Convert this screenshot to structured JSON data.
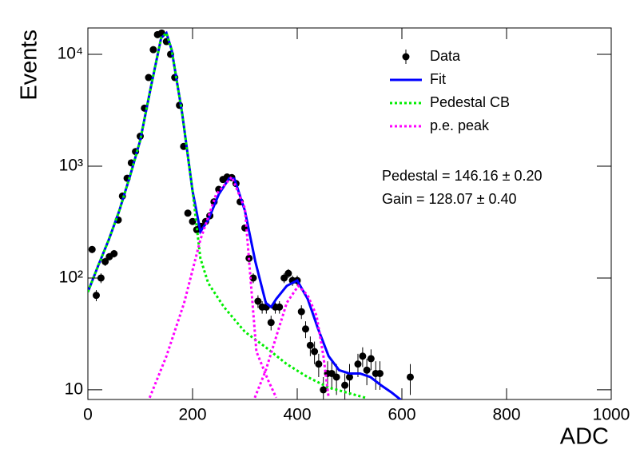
{
  "chart_data": {
    "type": "scatter",
    "x_label": "ADC",
    "y_label": "Events",
    "xlim": [
      0,
      1000
    ],
    "ylim": [
      8.2,
      17200
    ],
    "log_y": true,
    "xticks": [
      0,
      200,
      400,
      600,
      800,
      1000
    ],
    "yticks": [
      10,
      {
        "value": 100,
        "label": "10²"
      },
      {
        "value": 1000,
        "label": "10³"
      },
      {
        "value": 10000,
        "label": "10⁴"
      }
    ],
    "annotations": [
      "Pedestal = 146.16 ± 0.20",
      "Gain = 128.07 ± 0.40"
    ],
    "legend": "top-right",
    "series": [
      {
        "name": "Data",
        "type": "points",
        "color": "#000000",
        "x": [
          8,
          16,
          25,
          33,
          41,
          50,
          58,
          66,
          75,
          83,
          91,
          100,
          108,
          116,
          125,
          133,
          141,
          150,
          158,
          166,
          175,
          183,
          191,
          200,
          208,
          216,
          225,
          233,
          241,
          250,
          258,
          266,
          275,
          283,
          291,
          300,
          308,
          316,
          325,
          333,
          341,
          350,
          358,
          366,
          375,
          383,
          391,
          400,
          408,
          416,
          425,
          433,
          441,
          450,
          458,
          466,
          475,
          491,
          500,
          516,
          525,
          533,
          541,
          550,
          558,
          616
        ],
        "values": [
          180,
          70,
          100,
          140,
          155,
          165,
          330,
          540,
          780,
          1070,
          1350,
          1850,
          3300,
          6200,
          11000,
          15000,
          15500,
          13000,
          10000,
          6200,
          3500,
          1500,
          380,
          320,
          270,
          290,
          320,
          360,
          480,
          620,
          760,
          800,
          790,
          700,
          480,
          280,
          150,
          100,
          62,
          55,
          55,
          40,
          55,
          55,
          100,
          110,
          95,
          95,
          50,
          35,
          25,
          22,
          17,
          10,
          14,
          14,
          13,
          11,
          13,
          17,
          20,
          15,
          19,
          14,
          14,
          13
        ],
        "errors": [
          13,
          8,
          10,
          12,
          12,
          13,
          18,
          23,
          28,
          33,
          37,
          43,
          57,
          79,
          105,
          122,
          124,
          114,
          100,
          79,
          59,
          39,
          19,
          18,
          16,
          17,
          18,
          19,
          22,
          25,
          28,
          28,
          28,
          26,
          22,
          17,
          12,
          10,
          8,
          7,
          7,
          6,
          7,
          7,
          10,
          10,
          10,
          10,
          7,
          6,
          5,
          5,
          4,
          3,
          4,
          4,
          4,
          3,
          4,
          4,
          4,
          4,
          4,
          4,
          4,
          4
        ]
      },
      {
        "name": "Fit",
        "type": "line",
        "style": "solid",
        "color": "#0000ff",
        "x": [
          0,
          20,
          40,
          60,
          80,
          100,
          120,
          140,
          150,
          160,
          180,
          200,
          215,
          230,
          250,
          270,
          280,
          300,
          320,
          340,
          350,
          360,
          380,
          400,
          420,
          440,
          460,
          480,
          500,
          520,
          540,
          560,
          580,
          600
        ],
        "values": [
          75,
          130,
          220,
          400,
          800,
          1700,
          5000,
          14000,
          15500,
          11000,
          3000,
          600,
          260,
          330,
          560,
          780,
          770,
          400,
          140,
          60,
          55,
          65,
          85,
          95,
          65,
          35,
          20,
          15,
          14,
          14,
          13,
          11,
          9.5,
          8
        ]
      },
      {
        "name": "Pedestal CB",
        "type": "line",
        "style": "dotted",
        "color": "#00ee00",
        "x": [
          0,
          20,
          40,
          60,
          80,
          100,
          120,
          140,
          150,
          160,
          180,
          200,
          215,
          230,
          260,
          300,
          340,
          380,
          420,
          460,
          500,
          530
        ],
        "values": [
          75,
          130,
          220,
          400,
          800,
          1700,
          5000,
          14000,
          15500,
          11000,
          3000,
          600,
          150,
          90,
          55,
          33,
          24,
          17,
          13,
          10.5,
          9.3,
          8.5
        ]
      },
      {
        "name": "p.e. peak",
        "type": "line",
        "style": "dotted",
        "color": "#ff00ff",
        "x": [
          118,
          150,
          184,
          215,
          245,
          275,
          300,
          322,
          345,
          360,
          360,
          319,
          340,
          360,
          380,
          402,
          420,
          437,
          450,
          460
        ],
        "values": [
          8.5,
          20,
          60,
          220,
          560,
          800,
          420,
          22,
          12,
          8.5,
          null,
          8.5,
          15,
          30,
          60,
          85,
          70,
          46,
          20,
          8.5
        ]
      }
    ]
  }
}
